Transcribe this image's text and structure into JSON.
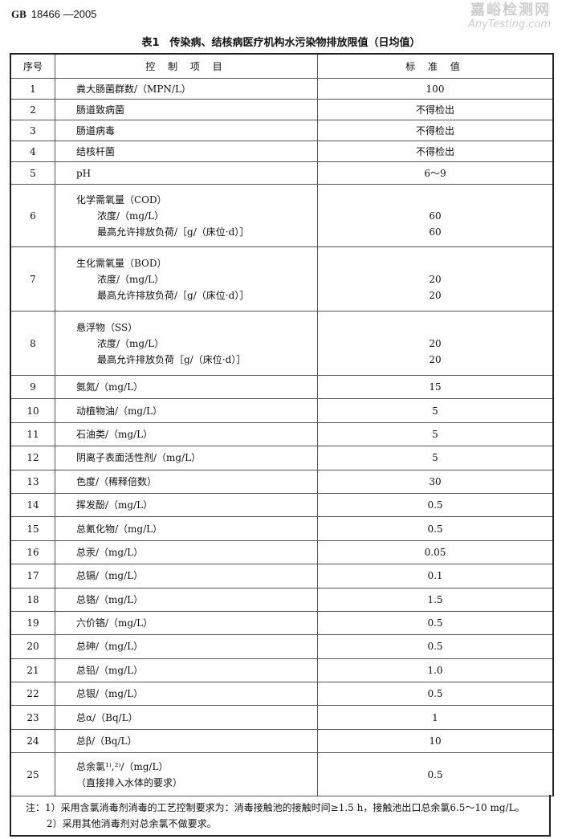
{
  "header": {
    "code": "GB",
    "number": "18466 —2005"
  },
  "table_title": "表1　传染病、结核病医疗机构水污染物排放限值（日均值）",
  "columns": [
    "序号",
    "控 制 项 目",
    "标 准 值"
  ],
  "rows": [
    {
      "no": "1",
      "items": [
        "粪大肠菌群数/（MPN/L）"
      ],
      "values": [
        "100"
      ]
    },
    {
      "no": "2",
      "items": [
        "肠道致病菌"
      ],
      "values": [
        "不得检出"
      ]
    },
    {
      "no": "3",
      "items": [
        "肠道病毒"
      ],
      "values": [
        "不得检出"
      ]
    },
    {
      "no": "4",
      "items": [
        "结核杆菌"
      ],
      "values": [
        "不得检出"
      ]
    },
    {
      "no": "5",
      "items": [
        "pH"
      ],
      "values": [
        "6～9"
      ]
    },
    {
      "no": "6",
      "items": [
        "化学需氧量（COD）",
        "浓度/（mg/L）",
        "最高允许排放负荷/［g/（床位·d）］"
      ],
      "values": [
        "",
        "60",
        "60"
      ]
    },
    {
      "no": "7",
      "items": [
        "生化需氧量（BOD）",
        "浓度/（mg/L）",
        "最高允许排放负荷/［g/（床位·d）］"
      ],
      "values": [
        "",
        "20",
        "20"
      ]
    },
    {
      "no": "8",
      "items": [
        "悬浮物（SS）",
        "浓度/（mg/L）",
        "最高允许排放负荷［g/（床位·d）］"
      ],
      "values": [
        "",
        "20",
        "20"
      ]
    },
    {
      "no": "9",
      "items": [
        "氨氮/（mg/L）"
      ],
      "values": [
        "15"
      ]
    },
    {
      "no": "10",
      "items": [
        "动植物油/（mg/L）"
      ],
      "values": [
        "5"
      ]
    },
    {
      "no": "11",
      "items": [
        "石油类/（mg/L）"
      ],
      "values": [
        "5"
      ]
    },
    {
      "no": "12",
      "items": [
        "阴离子表面活性剂/（mg/L）"
      ],
      "values": [
        "5"
      ]
    },
    {
      "no": "13",
      "items": [
        "色度/（稀释倍数）"
      ],
      "values": [
        "30"
      ]
    },
    {
      "no": "14",
      "items": [
        "挥发酚/（mg/L）"
      ],
      "values": [
        "0.5"
      ]
    },
    {
      "no": "15",
      "items": [
        "总氰化物/（mg/L）"
      ],
      "values": [
        "0.5"
      ]
    },
    {
      "no": "16",
      "items": [
        "总汞/（mg/L）"
      ],
      "values": [
        "0.05"
      ]
    },
    {
      "no": "17",
      "items": [
        "总镉/（mg/L）"
      ],
      "values": [
        "0.1"
      ]
    },
    {
      "no": "18",
      "items": [
        "总铬/（mg/L）"
      ],
      "values": [
        "1.5"
      ]
    },
    {
      "no": "19",
      "items": [
        "六价铬/（mg/L）"
      ],
      "values": [
        "0.5"
      ]
    },
    {
      "no": "20",
      "items": [
        "总砷/（mg/L）"
      ],
      "values": [
        "0.5"
      ]
    },
    {
      "no": "21",
      "items": [
        "总铅/（mg/L）"
      ],
      "values": [
        "1.0"
      ]
    },
    {
      "no": "22",
      "items": [
        "总银/（mg/L）"
      ],
      "values": [
        "0.5"
      ]
    },
    {
      "no": "23",
      "items": [
        "总α/（Bq/L）"
      ],
      "values": [
        "1"
      ]
    },
    {
      "no": "24",
      "items": [
        "总β/（Bq/L）"
      ],
      "values": [
        "10"
      ]
    },
    {
      "no": "25",
      "items": [
        "总余氯¹⁾,²⁾/（mg/L）",
        "（直接排入水体的要求）"
      ],
      "values": [
        "0.5"
      ]
    }
  ],
  "notes": [
    "注：1）采用含氯消毒剂消毒的工艺控制要求为：消毒接触池的接触时间≥1.5 h，接触池出口总余氯6.5～10 mg/L。",
    "2）采用其他消毒剂对总余氯不做要求。"
  ],
  "watermark": {
    "cn": "嘉峪检测网",
    "en": "AnyTesting.com"
  }
}
